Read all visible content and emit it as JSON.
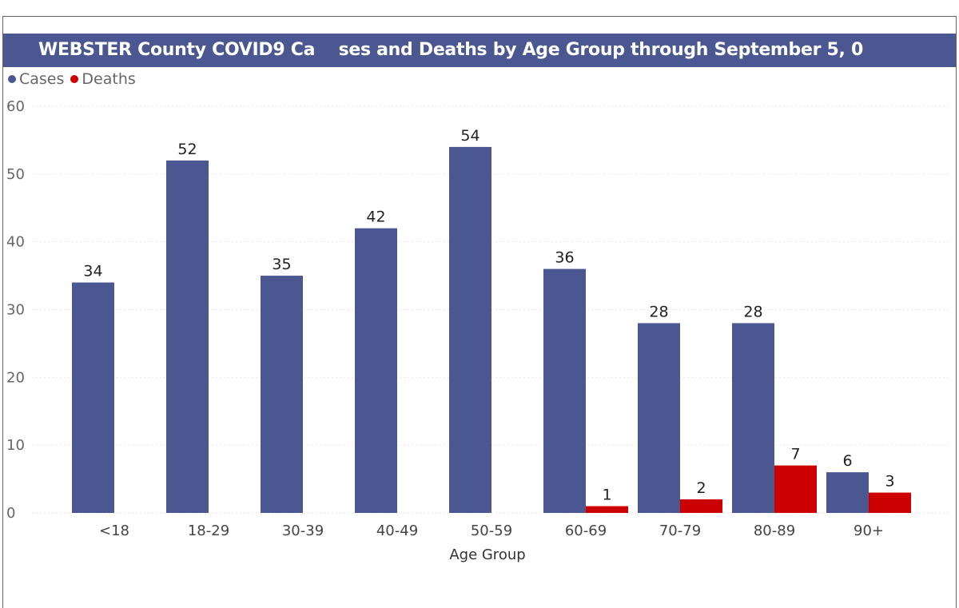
{
  "chart_data": {
    "type": "bar",
    "title": "WEBSTER County COVID9 Ca    ses and Deaths by Age Group through September 5, 0",
    "xlabel": "Age Group",
    "ylabel": "",
    "ylim": [
      0,
      60
    ],
    "yticks": [
      0,
      10,
      20,
      30,
      40,
      50,
      60
    ],
    "grid": true,
    "legend": "top-left",
    "categories": [
      "<18",
      "18-29",
      "30-39",
      "40-49",
      "50-59",
      "60-69",
      "70-79",
      "80-89",
      "90+"
    ],
    "series": [
      {
        "name": "Cases",
        "color": "#4a5791",
        "values": [
          34,
          52,
          35,
          42,
          54,
          36,
          28,
          28,
          6
        ]
      },
      {
        "name": "Deaths",
        "color": "#cc0000",
        "values": [
          null,
          null,
          null,
          null,
          null,
          1,
          2,
          7,
          3
        ]
      }
    ]
  }
}
